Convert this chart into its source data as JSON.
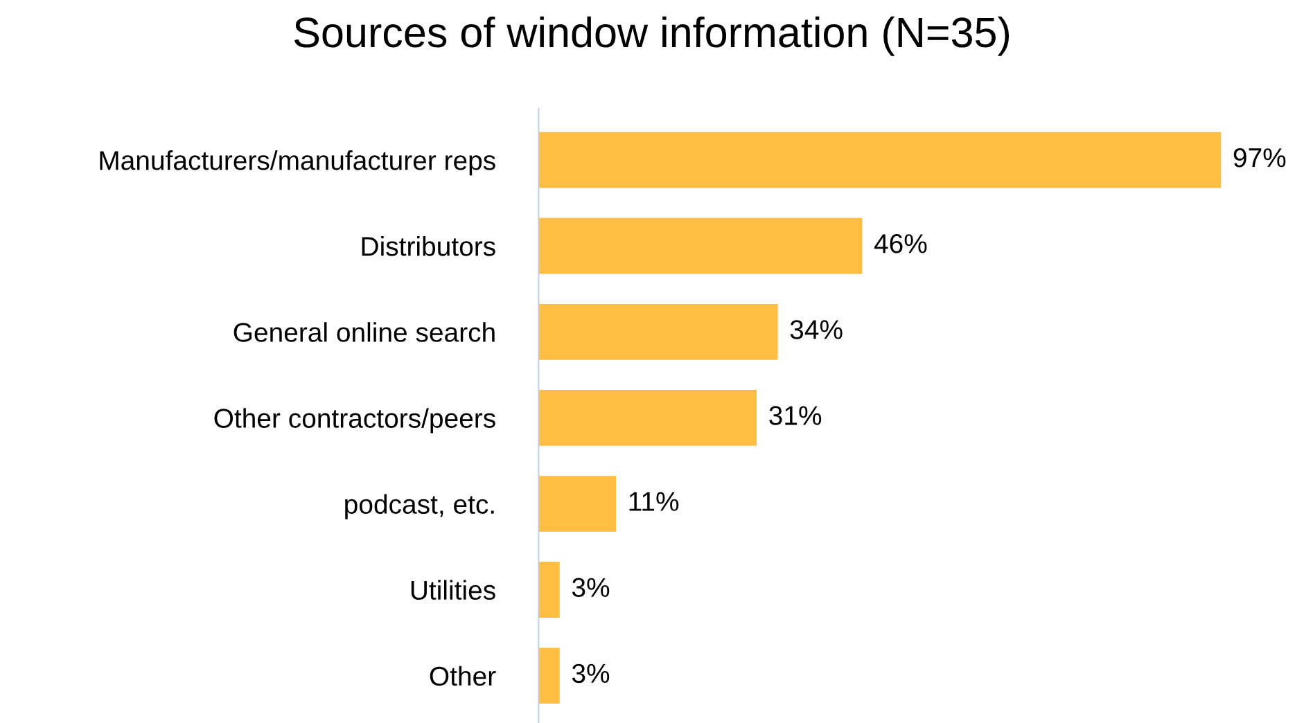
{
  "chart_data": {
    "type": "bar",
    "orientation": "horizontal",
    "title": "Sources of window information (N=35)",
    "categories": [
      "Manufacturers/manufacturer reps",
      "Distributors",
      "General online search",
      "Other contractors/peers",
      "podcast, etc.",
      "Utilities",
      "Other"
    ],
    "values": [
      97,
      46,
      34,
      31,
      11,
      3,
      3
    ],
    "value_labels": [
      "97%",
      "46%",
      "34%",
      "31%",
      "11%",
      "3%",
      "3%"
    ],
    "color": "#ffbe41",
    "grid": false,
    "legend": false
  }
}
